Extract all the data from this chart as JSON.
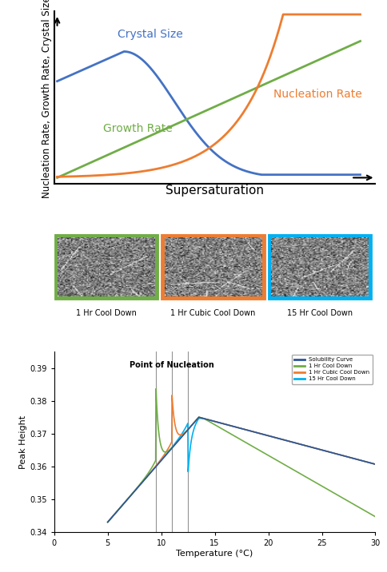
{
  "top_chart": {
    "ylabel": "Nucleation Rate, Growth Rate, Crystal Size",
    "xlabel": "Supersaturation",
    "crystal_size_color": "#4472c4",
    "growth_rate_color": "#70ad47",
    "nucleation_rate_color": "#ed7d31",
    "crystal_size_label": "Crystal Size",
    "growth_rate_label": "Growth Rate",
    "nucleation_rate_label": "Nucleation Rate"
  },
  "images": [
    {
      "label": "1 Hr Cool Down",
      "border_color": "#70ad47"
    },
    {
      "label": "1 Hr Cubic Cool Down",
      "border_color": "#ed7d31"
    },
    {
      "label": "15 Hr Cool Down",
      "border_color": "#00b0f0"
    }
  ],
  "bottom_chart": {
    "title": "Point of Nucleation",
    "xlabel": "Temperature (°C)",
    "ylabel": "Peak Height",
    "xlim": [
      0,
      30
    ],
    "ylim": [
      0.34,
      0.395
    ],
    "yticks": [
      0.34,
      0.35,
      0.36,
      0.37,
      0.38,
      0.39
    ],
    "xticks": [
      0,
      5,
      10,
      15,
      20,
      25,
      30
    ],
    "solubility_color": "#2f5597",
    "hr1_color": "#70ad47",
    "hr1cubic_color": "#ed7d31",
    "hr15_color": "#00b0f0",
    "legend": [
      "Solubility Curve",
      "1 Hr Cool Down",
      "1 Hr Cubic Cool Down",
      "15 Hr Cool Down"
    ],
    "nucleation_lines": [
      9.5,
      11.0,
      12.5
    ]
  }
}
